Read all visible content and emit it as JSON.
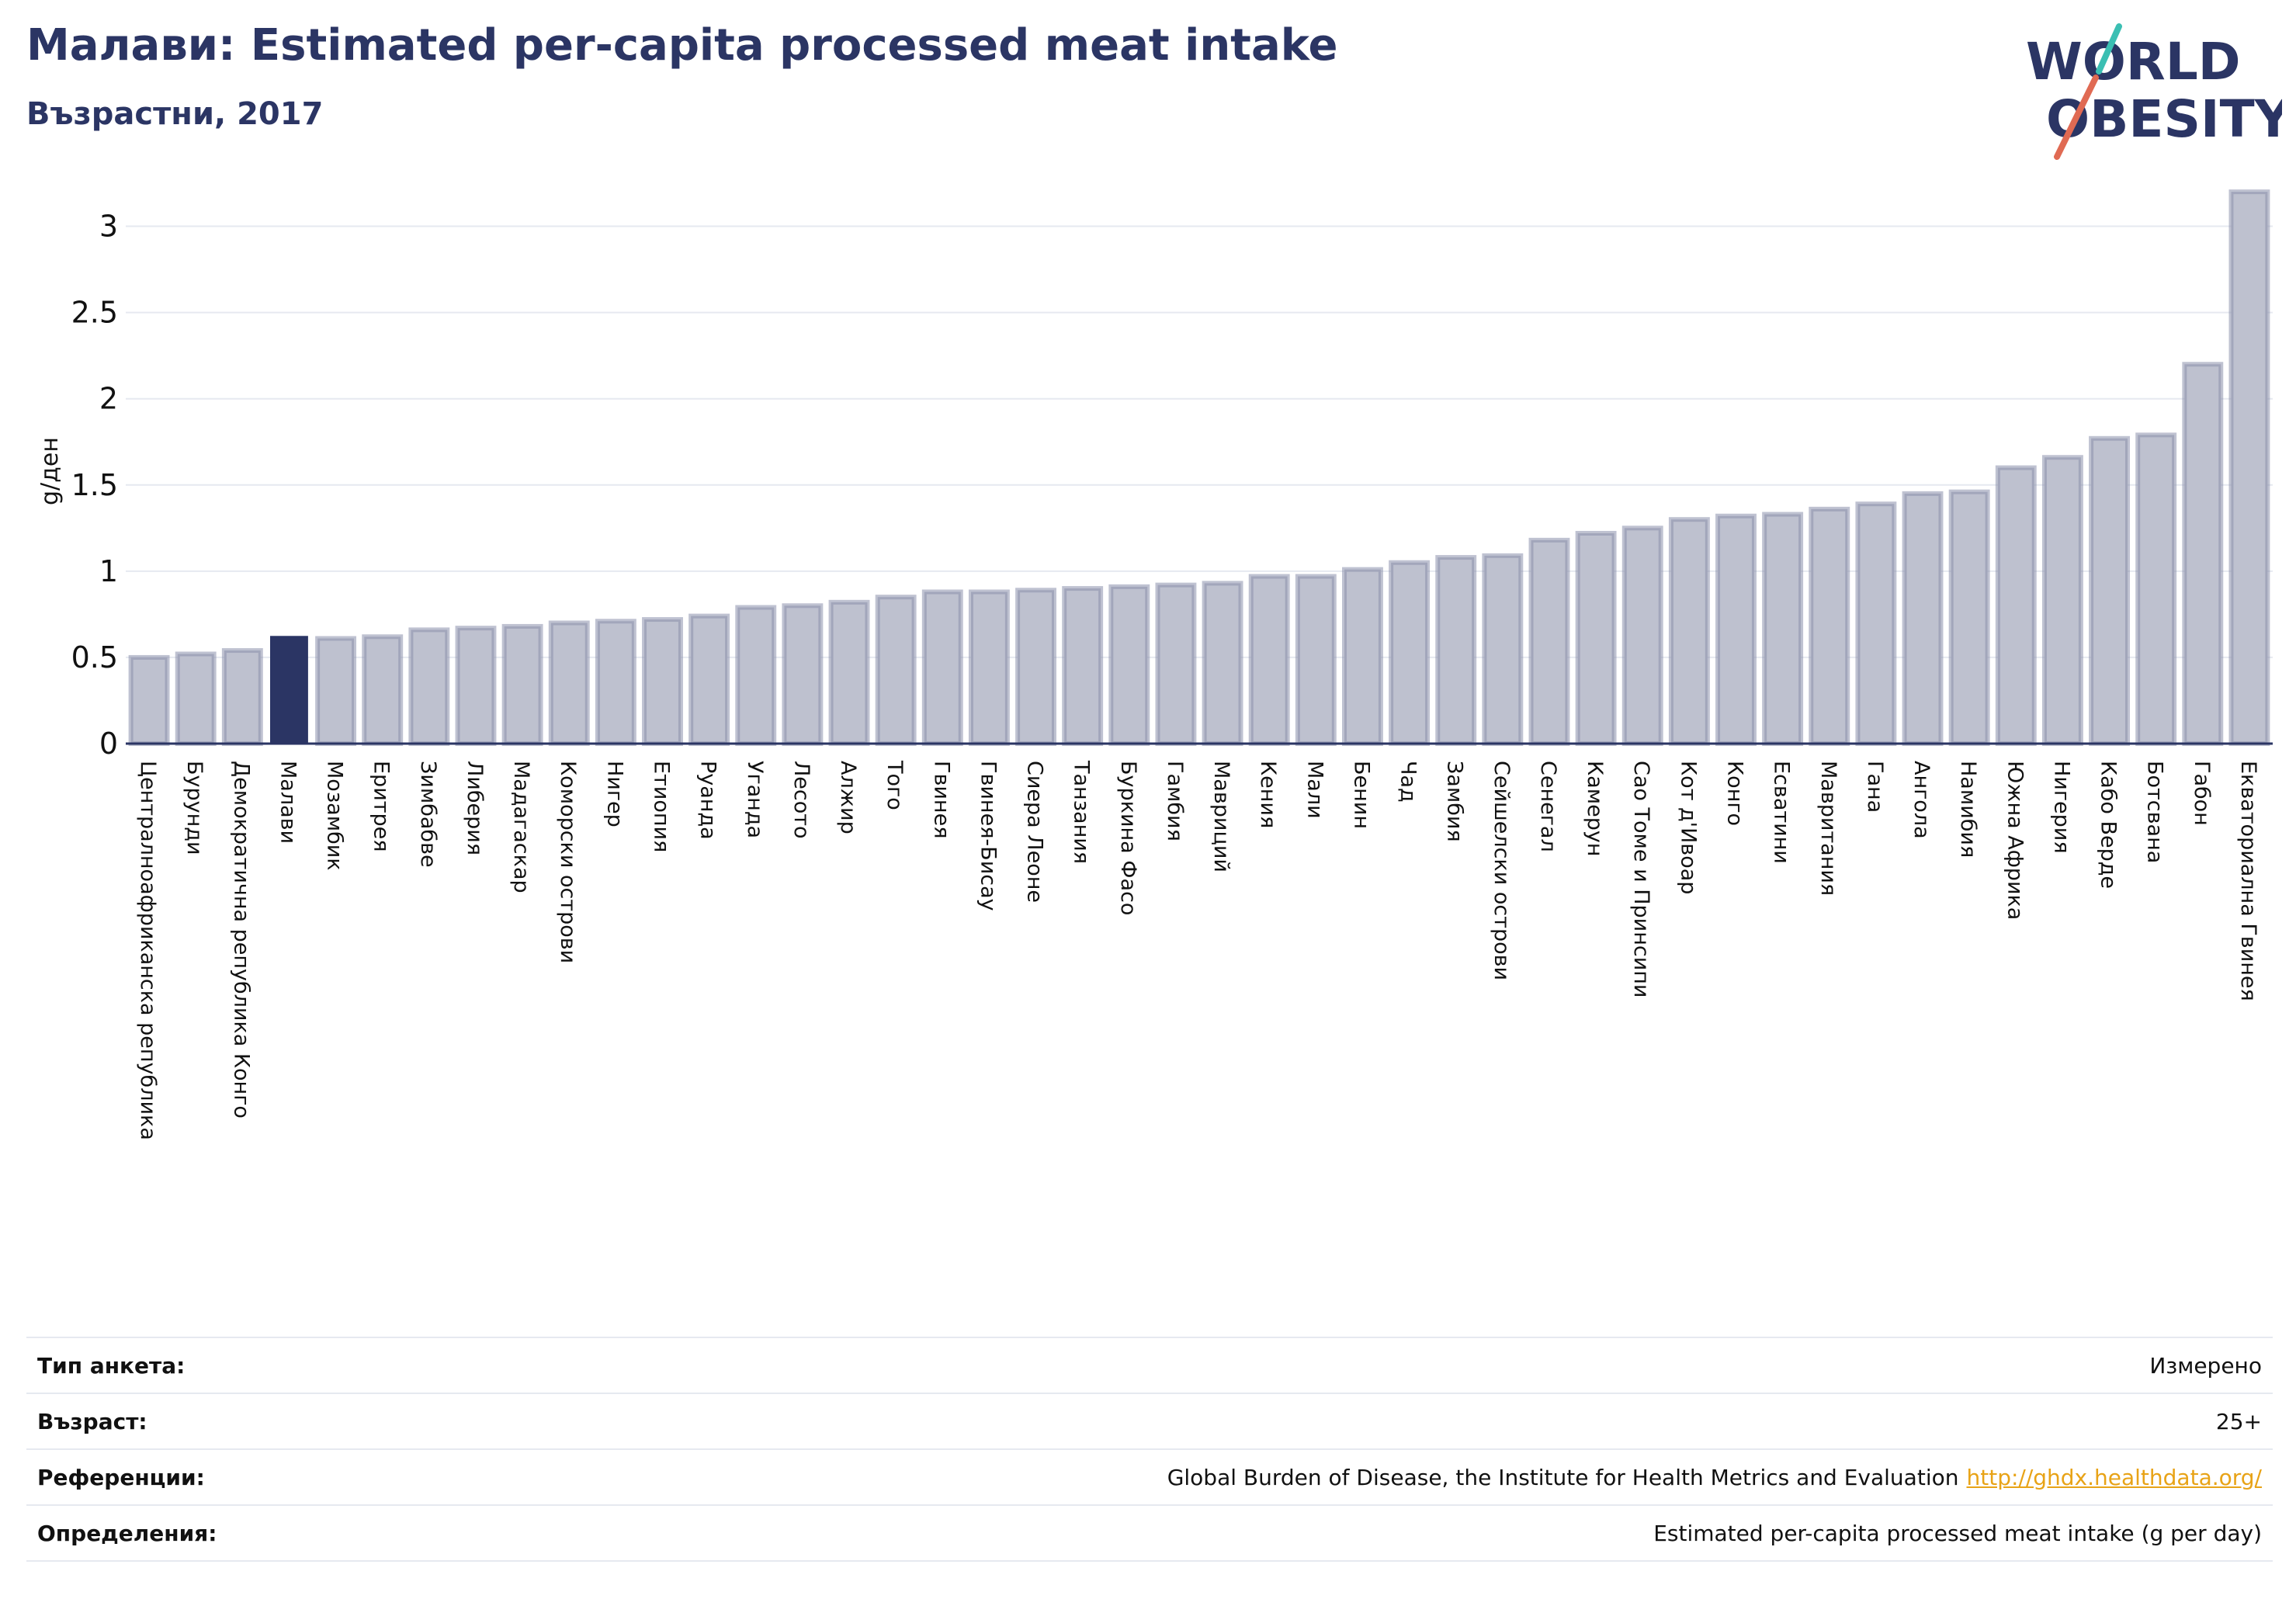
{
  "header": {
    "title": "Малави: Estimated per-capita processed meat intake",
    "subtitle": "Възрастни, 2017"
  },
  "logo": {
    "line1": "WORLD",
    "line2": "OBESITY"
  },
  "colors": {
    "highlight": "#2b3564",
    "bar_fill": "#bec1cf",
    "bar_stroke": "#8a90ab",
    "title": "#2b3564",
    "link": "#e8a317"
  },
  "chart_data": {
    "type": "bar",
    "ylabel": "g/ден",
    "ylim": [
      0,
      3.25
    ],
    "yticks": [
      "0",
      "0.5",
      "1",
      "1.5",
      "2",
      "2.5",
      "3"
    ],
    "highlight": "Малави",
    "categories": [
      "Централноафриканска република",
      "Бурунди",
      "Демократична република Конго",
      "Малави",
      "Мозамбик",
      "Еритрея",
      "Зимбабве",
      "Либерия",
      "Мадагаскар",
      "Коморски острови",
      "Нигер",
      "Етиопия",
      "Руанда",
      "Уганда",
      "Лесото",
      "Алжир",
      "Того",
      "Гвинея",
      "Гвинея-Бисау",
      "Сиера Леоне",
      "Танзания",
      "Буркина Фасо",
      "Гамбия",
      "Мавриций",
      "Кения",
      "Мали",
      "Бенин",
      "Чад",
      "Замбия",
      "Сейшелски острови",
      "Сенегал",
      "Камерун",
      "Сао Томе и Принсипи",
      "Кот д'Ивоар",
      "Конго",
      "Есватини",
      "Мавритания",
      "Гана",
      "Ангола",
      "Намибия",
      "Южна Африка",
      "Нигерия",
      "Кабо Верде",
      "Ботсвана",
      "Габон",
      "Екваториална Гвинея"
    ],
    "values": [
      0.5,
      0.52,
      0.54,
      0.62,
      0.61,
      0.62,
      0.66,
      0.67,
      0.68,
      0.7,
      0.71,
      0.72,
      0.74,
      0.79,
      0.8,
      0.82,
      0.85,
      0.88,
      0.88,
      0.89,
      0.9,
      0.91,
      0.92,
      0.93,
      0.97,
      0.97,
      1.01,
      1.05,
      1.08,
      1.09,
      1.18,
      1.22,
      1.25,
      1.3,
      1.32,
      1.33,
      1.36,
      1.39,
      1.45,
      1.46,
      1.6,
      1.66,
      1.77,
      1.79,
      2.2,
      3.2
    ]
  },
  "info": {
    "rows": [
      {
        "label": "Тип анкета:",
        "value": "Измерено",
        "link": ""
      },
      {
        "label": "Възраст:",
        "value": "25+",
        "link": ""
      },
      {
        "label": "Референции:",
        "value": "Global Burden of Disease, the Institute for Health Metrics and Evaluation",
        "link": "http://ghdx.healthdata.org/"
      },
      {
        "label": "Определения:",
        "value": "Estimated per-capita processed meat intake (g per day)",
        "link": ""
      }
    ]
  }
}
